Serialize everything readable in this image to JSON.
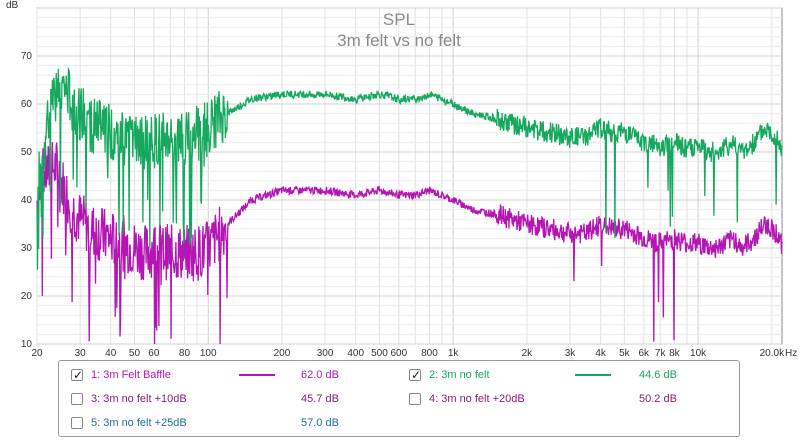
{
  "chart_data": {
    "type": "line",
    "title": "SPL",
    "subtitle": "3m felt vs no felt",
    "ylabel": "dB",
    "xlabel": "Hz",
    "xscale": "log",
    "xlim": [
      20,
      22000
    ],
    "ylim": [
      10,
      80
    ],
    "x_ticks": [
      {
        "v": 20,
        "l": "20"
      },
      {
        "v": 30,
        "l": "30"
      },
      {
        "v": 40,
        "l": "40"
      },
      {
        "v": 50,
        "l": "50"
      },
      {
        "v": 60,
        "l": "60"
      },
      {
        "v": 80,
        "l": "80"
      },
      {
        "v": 100,
        "l": "100"
      },
      {
        "v": 200,
        "l": "200"
      },
      {
        "v": 300,
        "l": "300"
      },
      {
        "v": 400,
        "l": "400"
      },
      {
        "v": 500,
        "l": "500"
      },
      {
        "v": 600,
        "l": "600"
      },
      {
        "v": 800,
        "l": "800"
      },
      {
        "v": 1000,
        "l": "1k"
      },
      {
        "v": 2000,
        "l": "2k"
      },
      {
        "v": 3000,
        "l": "3k"
      },
      {
        "v": 4000,
        "l": "4k"
      },
      {
        "v": 5000,
        "l": "5k"
      },
      {
        "v": 6000,
        "l": "6k"
      },
      {
        "v": 7000,
        "l": "7k"
      },
      {
        "v": 8000,
        "l": "8k"
      },
      {
        "v": 10000,
        "l": "10k"
      },
      {
        "v": 20000,
        "l": "20.0k"
      }
    ],
    "y_ticks": [
      10,
      20,
      30,
      40,
      50,
      60,
      70
    ],
    "grid": true,
    "series": [
      {
        "name": "3m Felt Baffle",
        "color": "#b316b3",
        "x": [
          20,
          21,
          22,
          24,
          26,
          28,
          30,
          33,
          36,
          40,
          45,
          50,
          55,
          60,
          70,
          80,
          90,
          100,
          120,
          150,
          200,
          250,
          300,
          400,
          500,
          600,
          700,
          800,
          1000,
          1200,
          1500,
          2000,
          2500,
          3000,
          3500,
          4000,
          4500,
          5000,
          5500,
          6000,
          7000,
          8000,
          9000,
          10000,
          11000,
          12000,
          13000,
          14000,
          15000,
          16000,
          17000,
          18000,
          19000,
          20000,
          21000,
          22000
        ],
        "y": [
          40,
          45,
          46,
          47,
          42,
          38,
          36,
          34,
          33,
          32,
          31,
          30,
          29,
          30,
          29,
          29,
          29,
          30,
          35,
          40,
          42,
          42,
          42,
          41,
          42,
          41,
          41,
          42,
          40,
          38,
          37,
          35,
          34,
          33,
          33,
          35,
          34,
          34,
          33,
          32,
          31,
          32,
          31,
          31,
          30,
          30,
          31,
          32,
          30,
          31,
          32,
          34,
          35,
          34,
          33,
          30
        ]
      },
      {
        "name": "3m no felt",
        "color": "#16a85f",
        "x": [
          20,
          21,
          22,
          24,
          26,
          28,
          30,
          33,
          36,
          40,
          45,
          50,
          55,
          60,
          70,
          80,
          90,
          100,
          120,
          150,
          200,
          250,
          300,
          400,
          500,
          600,
          700,
          800,
          1000,
          1200,
          1500,
          2000,
          2500,
          3000,
          3500,
          4000,
          4500,
          5000,
          5500,
          6000,
          7000,
          8000,
          9000,
          10000,
          11000,
          12000,
          13000,
          14000,
          15000,
          16000,
          17000,
          18000,
          19000,
          20000,
          21000,
          22000
        ],
        "y": [
          44,
          48,
          55,
          62,
          63,
          60,
          58,
          56,
          55,
          54,
          53,
          52,
          52,
          52,
          53,
          53,
          54,
          55,
          58,
          61,
          62,
          62,
          62,
          61,
          62,
          61,
          61,
          62,
          60,
          58,
          57,
          55,
          54,
          53,
          53,
          55,
          54,
          54,
          53,
          52,
          51,
          52,
          51,
          51,
          50,
          50,
          51,
          52,
          50,
          51,
          52,
          54,
          55,
          54,
          53,
          50
        ]
      }
    ]
  },
  "legend": [
    {
      "label": "1: 3m Felt Baffle",
      "value": "62.0 dB",
      "checked": true,
      "color": "#b316b3",
      "swatch": true
    },
    {
      "label": "2: 3m no felt",
      "value": "44.6 dB",
      "checked": true,
      "color": "#16a85f",
      "swatch": true
    },
    {
      "label": "3: 3m no felt +10dB",
      "value": "45.7 dB",
      "checked": false,
      "color": "#7a1f7a",
      "swatch": false
    },
    {
      "label": "4: 3m no felt +20dB",
      "value": "50.2 dB",
      "checked": false,
      "color": "#8a1f6a",
      "swatch": false
    },
    {
      "label": "5: 3m no felt +25dB",
      "value": "57.0 dB",
      "checked": false,
      "color": "#1f6e9a",
      "swatch": false
    }
  ]
}
